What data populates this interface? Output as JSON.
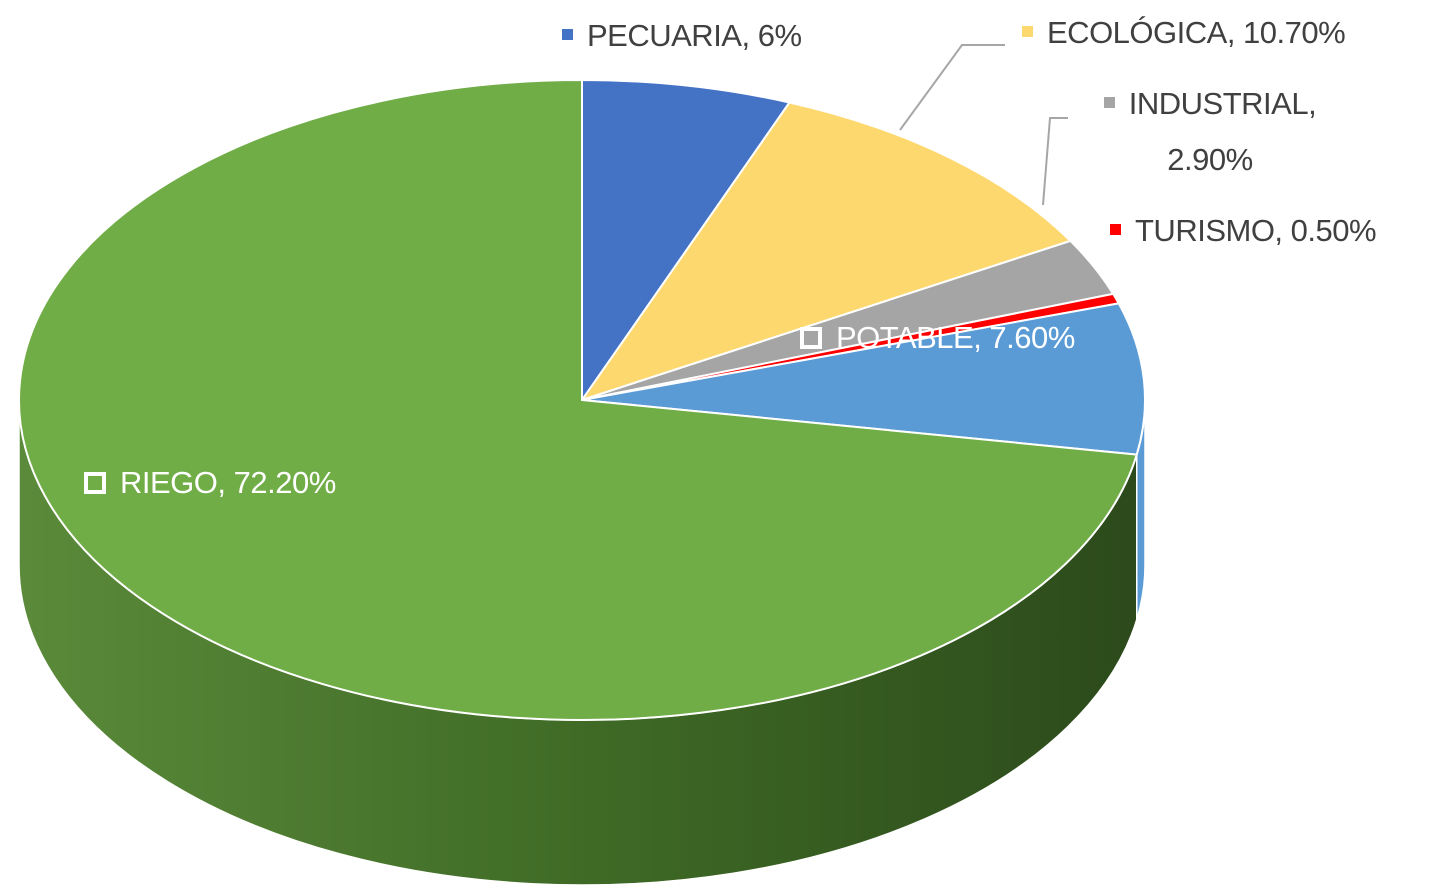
{
  "chart_data": {
    "type": "pie",
    "values": [
      6,
      10.7,
      2.9,
      0.5,
      7.6,
      72.2
    ],
    "value_labels": [
      "PECUARIA, 6%",
      "ECOLÓGICA, 10.70%",
      "INDUSTRIAL, 2.90%",
      "TURISMO, 0.50%",
      "POTABLE, 7.60%",
      "RIEGO, 72.20%"
    ],
    "colors": [
      "#4472c4",
      "#fdd86f",
      "#a5a5a5",
      "#ff0000",
      "#5b9bd5",
      "#70ad47"
    ]
  }
}
